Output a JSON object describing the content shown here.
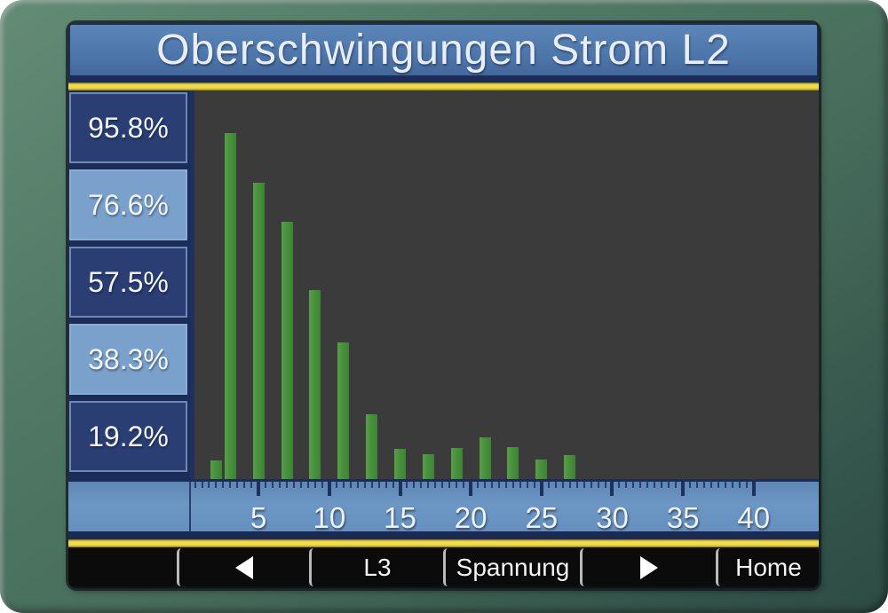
{
  "title": "Oberschwingungen Strom L2",
  "sidebar": {
    "labels": [
      "95.8%",
      "76.6%",
      "57.5%",
      "38.3%",
      "19.2%"
    ]
  },
  "x_axis": {
    "tick_labels": [
      "5",
      "10",
      "15",
      "20",
      "25",
      "30",
      "35",
      "40"
    ]
  },
  "softkeys": [
    {
      "label": "",
      "icon": ""
    },
    {
      "label": "",
      "icon": "left-triangle"
    },
    {
      "label": "L3",
      "icon": ""
    },
    {
      "label": "Spannung",
      "icon": ""
    },
    {
      "label": "",
      "icon": "right-triangle"
    },
    {
      "label": "Home",
      "icon": ""
    }
  ],
  "colors": {
    "bezel_green": "#4d7362",
    "title_bar_blue": "#4e78ac",
    "stripe_yellow": "#ecd23e",
    "stripe_navy": "#1b2c58",
    "chart_background": "#3b3b3b",
    "bar_green": "#47913c",
    "ruler_blue": "#6892c0",
    "label_box_dark": "#2a3e74",
    "label_box_light": "#7aa1cb",
    "button_black": "#0b0b0b",
    "text_white": "#f2f5fa"
  },
  "chart_data": {
    "type": "bar",
    "title": "Oberschwingungen Strom L2",
    "xlabel": "",
    "ylabel": "",
    "x": [
      2,
      3,
      5,
      7,
      9,
      11,
      13,
      15,
      17,
      19,
      21,
      23,
      25,
      27
    ],
    "values": [
      5.2,
      95.8,
      82.0,
      71.3,
      52.3,
      37.8,
      18.0,
      8.3,
      6.8,
      8.7,
      11.6,
      8.9,
      5.4,
      6.7
    ],
    "x_tick_values": [
      5,
      10,
      15,
      20,
      25,
      30,
      35,
      40
    ],
    "y_tick_labels": [
      "19.2%",
      "38.3%",
      "57.5%",
      "76.6%",
      "95.8%"
    ],
    "xlim": [
      1,
      44
    ],
    "ylim": [
      0,
      107
    ],
    "grid": false,
    "legend": "none",
    "bar_color": "#47913c"
  }
}
